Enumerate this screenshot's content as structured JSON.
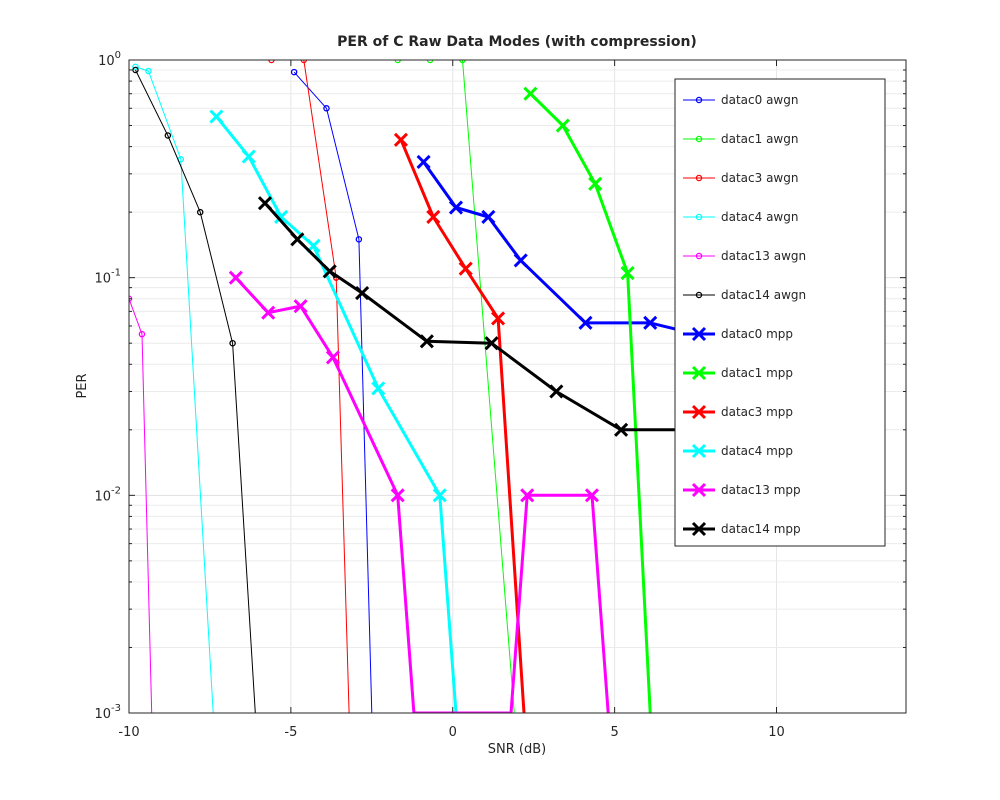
{
  "chart_data": {
    "type": "line",
    "title": "PER of C Raw Data Modes (with compression)",
    "xlabel": "SNR (dB)",
    "ylabel": "PER",
    "xlim": [
      -10,
      14
    ],
    "ylim": [
      0.001,
      1
    ],
    "yscale": "log",
    "x_ticks": [
      -10,
      -5,
      0,
      5,
      10
    ],
    "x_tick_labels": [
      "-10",
      "-5",
      "0",
      "5",
      "10"
    ],
    "y_ticks": [
      0.001,
      0.01,
      0.1,
      1
    ],
    "y_tick_labels": [
      {
        "base": "10",
        "exp": "-3"
      },
      {
        "base": "10",
        "exp": "-2"
      },
      {
        "base": "10",
        "exp": "-1"
      },
      {
        "base": "10",
        "exp": "0"
      }
    ],
    "grid": true,
    "legend_position": "top-right",
    "series": [
      {
        "name": "datac0 awgn",
        "color": "#0000ff",
        "marker": "circle",
        "width": 1,
        "x": [
          -4.9,
          -3.9,
          -2.9,
          -2.5
        ],
        "y": [
          0.88,
          0.6,
          0.15,
          0.001
        ]
      },
      {
        "name": "datac1 awgn",
        "color": "#00ff00",
        "marker": "circle",
        "width": 1,
        "x": [
          -1.7,
          -0.7,
          0.3,
          1.9
        ],
        "y": [
          1.0,
          1.0,
          1.0,
          0.001
        ]
      },
      {
        "name": "datac3 awgn",
        "color": "#ff0000",
        "marker": "circle",
        "width": 1,
        "x": [
          -5.6,
          -4.6,
          -3.6,
          -3.2
        ],
        "y": [
          1.0,
          1.0,
          0.1,
          0.001
        ]
      },
      {
        "name": "datac4 awgn",
        "color": "#00ffff",
        "marker": "circle",
        "width": 1,
        "x": [
          -9.8,
          -9.4,
          -8.4,
          -7.4
        ],
        "y": [
          0.93,
          0.89,
          0.35,
          0.001
        ]
      },
      {
        "name": "datac13 awgn",
        "color": "#ff00ff",
        "marker": "circle",
        "width": 1,
        "x": [
          -10.0,
          -9.6,
          -9.3
        ],
        "y": [
          0.08,
          0.055,
          0.001
        ]
      },
      {
        "name": "datac14 awgn",
        "color": "#000000",
        "marker": "circle",
        "width": 1,
        "x": [
          -9.8,
          -8.8,
          -7.8,
          -6.8,
          -6.1
        ],
        "y": [
          0.9,
          0.45,
          0.2,
          0.05,
          0.001
        ]
      },
      {
        "name": "datac0 mpp",
        "color": "#0000ff",
        "marker": "x",
        "width": 3,
        "x": [
          -0.9,
          0.1,
          1.1,
          2.1,
          4.1,
          6.1,
          7.1
        ],
        "y": [
          0.34,
          0.21,
          0.19,
          0.12,
          0.062,
          0.062,
          0.057
        ]
      },
      {
        "name": "datac1 mpp",
        "color": "#00ff00",
        "marker": "x",
        "width": 3,
        "x": [
          2.4,
          3.4,
          4.4,
          5.4,
          6.1
        ],
        "y": [
          0.7,
          0.5,
          0.27,
          0.105,
          0.001
        ]
      },
      {
        "name": "datac3 mpp",
        "color": "#ff0000",
        "marker": "x",
        "width": 3,
        "x": [
          -1.6,
          -0.6,
          0.4,
          1.4,
          2.2
        ],
        "y": [
          0.43,
          0.19,
          0.11,
          0.065,
          0.001
        ]
      },
      {
        "name": "datac4 mpp",
        "color": "#00ffff",
        "marker": "x",
        "width": 3,
        "x": [
          -7.3,
          -6.3,
          -5.3,
          -4.3,
          -2.3,
          -0.4,
          0.1
        ],
        "y": [
          0.55,
          0.36,
          0.19,
          0.14,
          0.031,
          0.01,
          0.001
        ]
      },
      {
        "name": "datac13 mpp",
        "color": "#ff00ff",
        "marker": "x",
        "width": 3,
        "x": [
          -6.7,
          -5.7,
          -4.7,
          -3.7,
          -1.7,
          -1.2,
          1.8,
          2.3,
          4.3,
          4.8
        ],
        "y": [
          0.1,
          0.069,
          0.074,
          0.043,
          0.01,
          0.001,
          0.001,
          0.01,
          0.01,
          0.001
        ]
      },
      {
        "name": "datac14 mpp",
        "color": "#000000",
        "marker": "x",
        "width": 3,
        "x": [
          -5.8,
          -4.8,
          -3.8,
          -2.8,
          -0.8,
          1.2,
          3.2,
          5.2,
          7.2
        ],
        "y": [
          0.22,
          0.15,
          0.107,
          0.085,
          0.051,
          0.05,
          0.03,
          0.02,
          0.02
        ]
      }
    ]
  }
}
